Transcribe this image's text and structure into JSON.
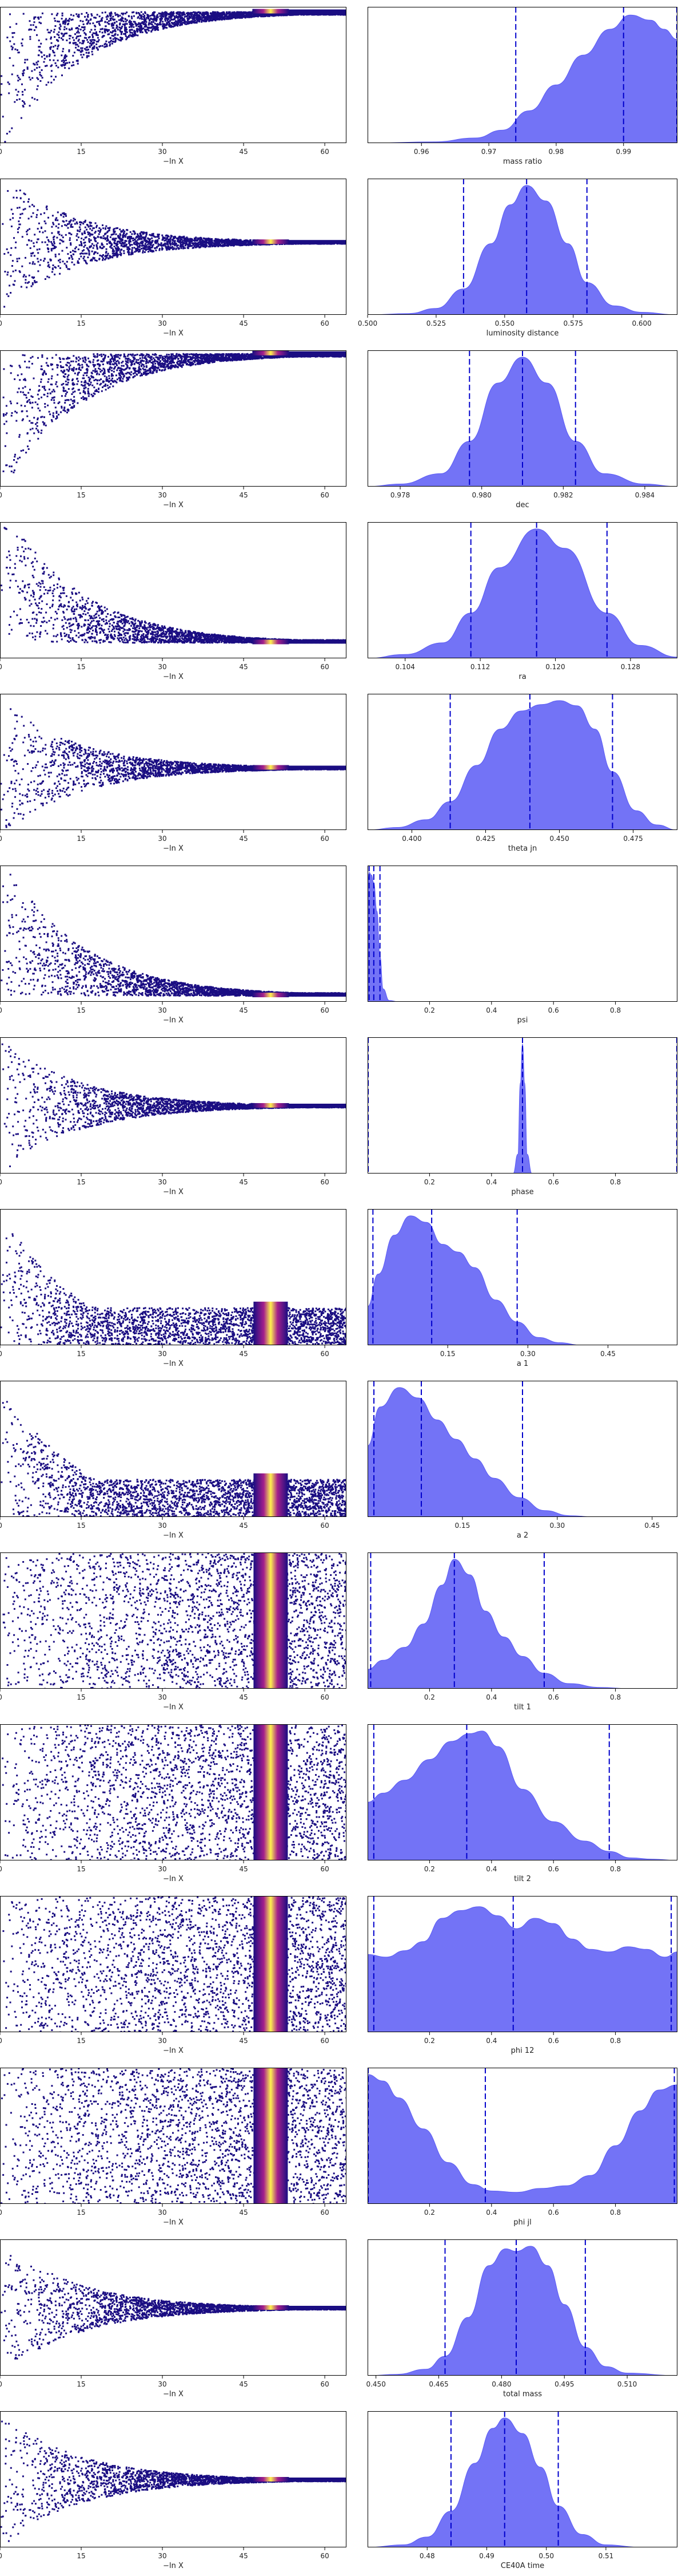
{
  "chart_data": [
    {
      "type": "scatter",
      "ylabel": "mass ratio",
      "xlabel": "−ln X",
      "xlim": [
        0,
        64
      ],
      "ylim": [
        0.05,
        1.0
      ],
      "x_ticks": [
        "0",
        "15",
        "30",
        "45",
        "60"
      ],
      "y_ticks": [
        "0.2",
        "0.4",
        "0.6",
        "0.8"
      ],
      "shape": "bounded-above",
      "peak_y": 0.97,
      "peak_x": 50
    },
    {
      "type": "area",
      "xlabel": "mass ratio",
      "xlim": [
        0.952,
        0.998
      ],
      "x_ticks": [
        "0.96",
        "0.97",
        "0.98",
        "0.99"
      ],
      "quantiles": [
        0.974,
        0.99,
        0.998
      ],
      "density": {
        "x": [
          0.952,
          0.962,
          0.968,
          0.972,
          0.976,
          0.98,
          0.984,
          0.988,
          0.991,
          0.994,
          0.996,
          0.998
        ],
        "y": [
          0,
          0.01,
          0.04,
          0.1,
          0.25,
          0.45,
          0.68,
          0.88,
          0.99,
          0.95,
          0.88,
          0.8
        ]
      }
    },
    {
      "type": "scatter",
      "ylabel": "luminosity distance",
      "xlabel": "−ln X",
      "xlim": [
        0,
        64
      ],
      "ylim": [
        0.05,
        1.0
      ],
      "x_ticks": [
        "0",
        "15",
        "30",
        "45",
        "60"
      ],
      "y_ticks": [
        "0.2",
        "0.4",
        "0.6",
        "0.8"
      ],
      "shape": "funnel",
      "peak_y": 0.56,
      "peak_x": 50
    },
    {
      "type": "area",
      "xlabel": "luminosity distance",
      "xlim": [
        0.5,
        0.613
      ],
      "x_ticks": [
        "0.500",
        "0.525",
        "0.550",
        "0.575",
        "0.600"
      ],
      "quantiles": [
        0.535,
        0.558,
        0.58
      ],
      "density": {
        "x": [
          0.5,
          0.515,
          0.525,
          0.535,
          0.545,
          0.552,
          0.558,
          0.565,
          0.573,
          0.58,
          0.59,
          0.6,
          0.613
        ],
        "y": [
          0,
          0.01,
          0.05,
          0.2,
          0.55,
          0.85,
          1.0,
          0.88,
          0.55,
          0.25,
          0.07,
          0.02,
          0
        ]
      }
    },
    {
      "type": "scatter",
      "ylabel": "dec",
      "xlabel": "−ln X",
      "xlim": [
        0,
        64
      ],
      "ylim": [
        0.0,
        1.0
      ],
      "x_ticks": [
        "0",
        "15",
        "30",
        "45",
        "60"
      ],
      "y_ticks": [
        "0.2",
        "0.4",
        "0.6",
        "0.8"
      ],
      "shape": "bounded-above",
      "peak_y": 0.98,
      "peak_x": 50
    },
    {
      "type": "area",
      "xlabel": "dec",
      "xlim": [
        0.9772,
        0.9848
      ],
      "x_ticks": [
        "0.978",
        "0.980",
        "0.982",
        "0.984"
      ],
      "quantiles": [
        0.9797,
        0.981,
        0.9823
      ],
      "density": {
        "x": [
          0.9772,
          0.978,
          0.979,
          0.9797,
          0.9804,
          0.981,
          0.9816,
          0.9823,
          0.983,
          0.984,
          0.9848
        ],
        "y": [
          0,
          0.02,
          0.1,
          0.35,
          0.8,
          1.0,
          0.8,
          0.35,
          0.1,
          0.02,
          0
        ]
      }
    },
    {
      "type": "scatter",
      "ylabel": "ra",
      "xlabel": "−ln X",
      "xlim": [
        0,
        64
      ],
      "ylim": [
        0.0,
        1.0
      ],
      "x_ticks": [
        "0",
        "15",
        "30",
        "45",
        "60"
      ],
      "y_ticks": [
        "0.2",
        "0.4",
        "0.6",
        "0.8"
      ],
      "shape": "bounded-below",
      "peak_y": 0.12,
      "peak_x": 50
    },
    {
      "type": "area",
      "xlabel": "ra",
      "xlim": [
        0.1,
        0.133
      ],
      "x_ticks": [
        "0.104",
        "0.112",
        "0.120",
        "0.128"
      ],
      "quantiles": [
        0.111,
        0.118,
        0.1255
      ],
      "density": {
        "x": [
          0.1,
          0.104,
          0.108,
          0.111,
          0.114,
          0.118,
          0.121,
          0.1255,
          0.129,
          0.133
        ],
        "y": [
          0,
          0.03,
          0.12,
          0.35,
          0.7,
          1.0,
          0.85,
          0.35,
          0.1,
          0.01
        ]
      }
    },
    {
      "type": "scatter",
      "ylabel": "theta jn",
      "xlabel": "−ln X",
      "xlim": [
        0,
        64
      ],
      "ylim": [
        0.0,
        1.0
      ],
      "x_ticks": [
        "0",
        "15",
        "30",
        "45",
        "60"
      ],
      "y_ticks": [
        "0.2",
        "0.4",
        "0.6",
        "0.8"
      ],
      "shape": "funnel",
      "peak_y": 0.46,
      "peak_x": 50
    },
    {
      "type": "area",
      "xlabel": "theta jn",
      "xlim": [
        0.385,
        0.49
      ],
      "x_ticks": [
        "0.400",
        "0.425",
        "0.450",
        "0.475"
      ],
      "quantiles": [
        0.413,
        0.44,
        0.468
      ],
      "density": {
        "x": [
          0.385,
          0.395,
          0.405,
          0.413,
          0.422,
          0.43,
          0.437,
          0.444,
          0.45,
          0.456,
          0.462,
          0.468,
          0.476,
          0.483,
          0.49
        ],
        "y": [
          0,
          0.02,
          0.08,
          0.22,
          0.5,
          0.78,
          0.92,
          0.97,
          1.0,
          0.96,
          0.78,
          0.45,
          0.15,
          0.04,
          0
        ]
      }
    },
    {
      "type": "scatter",
      "ylabel": "psi",
      "xlabel": "−ln X",
      "xlim": [
        0,
        64
      ],
      "ylim": [
        0.0,
        1.0
      ],
      "x_ticks": [
        "0",
        "15",
        "30",
        "45",
        "60"
      ],
      "y_ticks": [
        "0.2",
        "0.4",
        "0.6",
        "0.8"
      ],
      "shape": "bounded-below",
      "peak_y": 0.05,
      "peak_x": 50
    },
    {
      "type": "area",
      "xlabel": "psi",
      "xlim": [
        0.0,
        1.0
      ],
      "x_ticks": [
        "0.2",
        "0.4",
        "0.6",
        "0.8"
      ],
      "quantiles": [
        0.005,
        0.02,
        0.04
      ],
      "density": {
        "x": [
          0.0,
          0.005,
          0.012,
          0.02,
          0.03,
          0.04,
          0.05,
          0.07,
          0.1,
          1.0
        ],
        "y": [
          0.9,
          1.0,
          0.98,
          0.92,
          0.7,
          0.35,
          0.1,
          0.01,
          0,
          0
        ]
      }
    },
    {
      "type": "scatter",
      "ylabel": "phase",
      "xlabel": "−ln X",
      "xlim": [
        0,
        64
      ],
      "ylim": [
        0.0,
        1.0
      ],
      "x_ticks": [
        "0",
        "15",
        "30",
        "45",
        "60"
      ],
      "y_ticks": [
        "0.2",
        "0.4",
        "0.6",
        "0.8"
      ],
      "shape": "funnel",
      "peak_y": 0.5,
      "peak_x": 50
    },
    {
      "type": "area",
      "xlabel": "phase",
      "xlim": [
        0.0,
        1.0
      ],
      "x_ticks": [
        "0.2",
        "0.4",
        "0.6",
        "0.8"
      ],
      "quantiles": [
        0.0,
        0.5,
        1.0
      ],
      "density": {
        "x": [
          0.0,
          0.47,
          0.485,
          0.493,
          0.5,
          0.507,
          0.515,
          0.53,
          1.0
        ],
        "y": [
          0,
          0,
          0.15,
          0.7,
          1.0,
          0.7,
          0.15,
          0,
          0
        ]
      }
    },
    {
      "type": "scatter",
      "ylabel": "a 1",
      "xlabel": "−ln X",
      "xlim": [
        0,
        64
      ],
      "ylim": [
        0.0,
        1.0
      ],
      "x_ticks": [
        "0",
        "15",
        "30",
        "45",
        "60"
      ],
      "y_ticks": [
        "0.2",
        "0.4",
        "0.6",
        "0.8"
      ],
      "shape": "wedge",
      "peak_y": 0.15,
      "peak_x": 50
    },
    {
      "type": "area",
      "xlabel": "a 1",
      "xlim": [
        0.0,
        0.58
      ],
      "x_ticks": [
        "0.15",
        "0.30",
        "0.45"
      ],
      "quantiles": [
        0.01,
        0.12,
        0.28
      ],
      "density": {
        "x": [
          0.0,
          0.02,
          0.05,
          0.08,
          0.11,
          0.14,
          0.17,
          0.2,
          0.24,
          0.28,
          0.32,
          0.36,
          0.4,
          0.58
        ],
        "y": [
          0.3,
          0.55,
          0.85,
          1.0,
          0.95,
          0.78,
          0.72,
          0.6,
          0.35,
          0.18,
          0.06,
          0.02,
          0,
          0
        ]
      }
    },
    {
      "type": "scatter",
      "ylabel": "a 2",
      "xlabel": "−ln X",
      "xlim": [
        0,
        64
      ],
      "ylim": [
        0.0,
        1.0
      ],
      "x_ticks": [
        "0",
        "15",
        "30",
        "45",
        "60"
      ],
      "y_ticks": [
        "0.2",
        "0.4",
        "0.6",
        "0.8"
      ],
      "shape": "wedge",
      "peak_y": 0.15,
      "peak_x": 50
    },
    {
      "type": "area",
      "xlabel": "a 2",
      "xlim": [
        0.0,
        0.49
      ],
      "x_ticks": [
        "0.15",
        "0.30",
        "0.45"
      ],
      "quantiles": [
        0.01,
        0.085,
        0.245
      ],
      "density": {
        "x": [
          0.0,
          0.02,
          0.05,
          0.08,
          0.11,
          0.14,
          0.17,
          0.2,
          0.24,
          0.28,
          0.32,
          0.36,
          0.49
        ],
        "y": [
          0.55,
          0.85,
          1.0,
          0.92,
          0.75,
          0.6,
          0.45,
          0.3,
          0.15,
          0.05,
          0.01,
          0,
          0
        ]
      }
    },
    {
      "type": "scatter",
      "ylabel": "tilt 1",
      "xlabel": "−ln X",
      "xlim": [
        0,
        64
      ],
      "ylim": [
        0.0,
        1.0
      ],
      "x_ticks": [
        "0",
        "15",
        "30",
        "45",
        "60"
      ],
      "y_ticks": [
        "0.2",
        "0.4",
        "0.6",
        "0.8"
      ],
      "shape": "band",
      "peak_y": 0.5,
      "peak_x": 50
    },
    {
      "type": "area",
      "xlabel": "tilt 1",
      "xlim": [
        0.0,
        1.0
      ],
      "x_ticks": [
        "0.2",
        "0.4",
        "0.6",
        "0.8"
      ],
      "quantiles": [
        0.01,
        0.28,
        0.57
      ],
      "density": {
        "x": [
          0.0,
          0.05,
          0.12,
          0.18,
          0.24,
          0.28,
          0.33,
          0.38,
          0.44,
          0.5,
          0.57,
          0.65,
          0.75,
          0.85,
          1.0
        ],
        "y": [
          0.15,
          0.22,
          0.32,
          0.5,
          0.8,
          1.0,
          0.88,
          0.6,
          0.4,
          0.25,
          0.12,
          0.04,
          0.01,
          0,
          0
        ]
      }
    },
    {
      "type": "scatter",
      "ylabel": "tilt 2",
      "xlabel": "−ln X",
      "xlim": [
        0,
        64
      ],
      "ylim": [
        0.0,
        1.0
      ],
      "x_ticks": [
        "0",
        "15",
        "30",
        "45",
        "60"
      ],
      "y_ticks": [
        "0.2",
        "0.4",
        "0.6",
        "0.8"
      ],
      "shape": "band",
      "peak_y": 0.5,
      "peak_x": 50
    },
    {
      "type": "area",
      "xlabel": "tilt 2",
      "xlim": [
        0.0,
        1.0
      ],
      "x_ticks": [
        "0.2",
        "0.4",
        "0.6",
        "0.8"
      ],
      "quantiles": [
        0.02,
        0.32,
        0.78
      ],
      "density": {
        "x": [
          0.0,
          0.05,
          0.12,
          0.2,
          0.27,
          0.33,
          0.37,
          0.42,
          0.5,
          0.6,
          0.7,
          0.78,
          0.85,
          0.92,
          1.0
        ],
        "y": [
          0.45,
          0.52,
          0.62,
          0.78,
          0.92,
          0.98,
          1.0,
          0.88,
          0.55,
          0.3,
          0.15,
          0.07,
          0.02,
          0.01,
          0
        ]
      }
    },
    {
      "type": "scatter",
      "ylabel": "phi 12",
      "xlabel": "−ln X",
      "xlim": [
        0,
        64
      ],
      "ylim": [
        0.0,
        1.0
      ],
      "x_ticks": [
        "0",
        "15",
        "30",
        "45",
        "60"
      ],
      "y_ticks": [
        "0.2",
        "0.4",
        "0.6",
        "0.8"
      ],
      "shape": "band",
      "peak_y": 0.5,
      "peak_x": 50
    },
    {
      "type": "area",
      "xlabel": "phi 12",
      "xlim": [
        0.0,
        1.0
      ],
      "x_ticks": [
        "0.2",
        "0.4",
        "0.6",
        "0.8"
      ],
      "quantiles": [
        0.02,
        0.47,
        0.98
      ],
      "density": {
        "x": [
          0.0,
          0.06,
          0.12,
          0.18,
          0.24,
          0.3,
          0.36,
          0.42,
          0.48,
          0.54,
          0.6,
          0.66,
          0.72,
          0.78,
          0.84,
          0.9,
          0.96,
          1.0
        ],
        "y": [
          0.6,
          0.58,
          0.63,
          0.7,
          0.88,
          0.94,
          0.97,
          0.9,
          0.8,
          0.88,
          0.84,
          0.72,
          0.64,
          0.62,
          0.66,
          0.64,
          0.58,
          0.62
        ]
      }
    },
    {
      "type": "scatter",
      "ylabel": "phi jl",
      "xlabel": "−ln X",
      "xlim": [
        0,
        64
      ],
      "ylim": [
        0.0,
        1.0
      ],
      "x_ticks": [
        "0",
        "15",
        "30",
        "45",
        "60"
      ],
      "y_ticks": [
        "0.2",
        "0.4",
        "0.6",
        "0.8"
      ],
      "shape": "band",
      "peak_y": 0.5,
      "peak_x": 50
    },
    {
      "type": "area",
      "xlabel": "phi jl",
      "xlim": [
        0.0,
        1.0
      ],
      "x_ticks": [
        "0.2",
        "0.4",
        "0.6",
        "0.8"
      ],
      "quantiles": [
        0.0,
        0.38,
        0.99
      ],
      "density": {
        "x": [
          0.0,
          0.05,
          0.1,
          0.18,
          0.26,
          0.34,
          0.4,
          0.48,
          0.56,
          0.64,
          0.72,
          0.8,
          0.88,
          0.94,
          1.0
        ],
        "y": [
          1.0,
          0.95,
          0.82,
          0.58,
          0.32,
          0.15,
          0.1,
          0.09,
          0.12,
          0.14,
          0.22,
          0.45,
          0.72,
          0.88,
          0.92
        ]
      }
    },
    {
      "type": "scatter",
      "ylabel": "total mass",
      "xlabel": "−ln X",
      "xlim": [
        0,
        64
      ],
      "ylim": [
        0.0,
        1.0
      ],
      "x_ticks": [
        "0",
        "15",
        "30",
        "45",
        "60"
      ],
      "y_ticks": [
        "0.2",
        "0.4",
        "0.6",
        "0.8"
      ],
      "shape": "funnel",
      "peak_y": 0.5,
      "peak_x": 50
    },
    {
      "type": "area",
      "xlabel": "total mass",
      "xlim": [
        0.448,
        0.522
      ],
      "x_ticks": [
        "0.450",
        "0.465",
        "0.480",
        "0.495",
        "0.510"
      ],
      "quantiles": [
        0.4665,
        0.4835,
        0.5
      ],
      "density": {
        "x": [
          0.448,
          0.455,
          0.462,
          0.4665,
          0.472,
          0.477,
          0.481,
          0.4835,
          0.487,
          0.491,
          0.495,
          0.5,
          0.505,
          0.51,
          0.522
        ],
        "y": [
          0,
          0.01,
          0.05,
          0.15,
          0.45,
          0.85,
          0.98,
          0.96,
          1.0,
          0.85,
          0.55,
          0.22,
          0.07,
          0.02,
          0
        ]
      }
    },
    {
      "type": "scatter",
      "ylabel": "CE40A time",
      "xlabel": "−ln X",
      "xlim": [
        0,
        64
      ],
      "ylim": [
        0.0,
        1.0
      ],
      "x_ticks": [
        "0",
        "15",
        "30",
        "45",
        "60"
      ],
      "y_ticks": [
        "0.2",
        "0.4",
        "0.6",
        "0.8"
      ],
      "shape": "funnel",
      "peak_y": 0.5,
      "peak_x": 50
    },
    {
      "type": "area",
      "xlabel": "CE40A time",
      "xlim": [
        0.47,
        0.522
      ],
      "x_ticks": [
        "0.48",
        "0.49",
        "0.50",
        "0.51"
      ],
      "quantiles": [
        0.484,
        0.493,
        0.502
      ],
      "density": {
        "x": [
          0.47,
          0.476,
          0.48,
          0.484,
          0.488,
          0.491,
          0.493,
          0.496,
          0.499,
          0.502,
          0.506,
          0.51,
          0.516,
          0.522
        ],
        "y": [
          0,
          0.02,
          0.08,
          0.28,
          0.65,
          0.92,
          1.0,
          0.88,
          0.62,
          0.32,
          0.1,
          0.02,
          0,
          0
        ]
      }
    }
  ],
  "colors": {
    "fill": "#5a5af5",
    "line": "#0000cc",
    "quantile": "#0000cc",
    "scatter_bg": "#1a0d82",
    "hot": "#fff34d",
    "mid": "#e8306f"
  }
}
